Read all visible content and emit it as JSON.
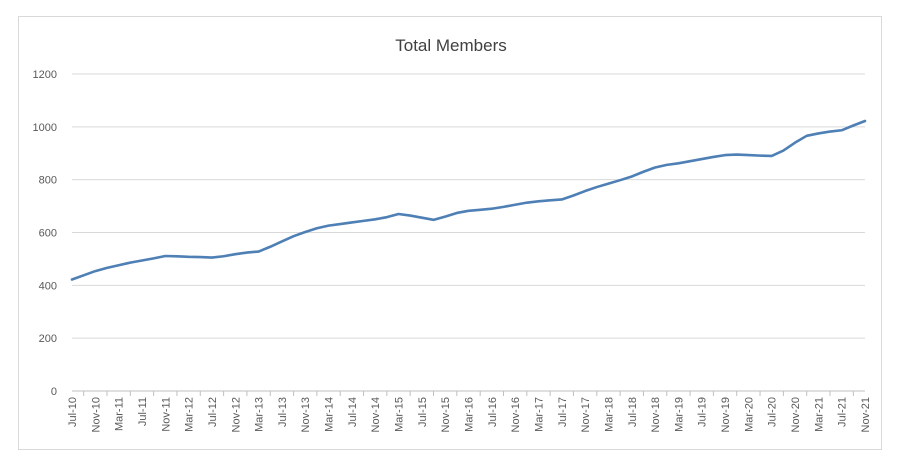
{
  "chart_data": {
    "type": "line",
    "title": "Total Members",
    "xlabel": "",
    "ylabel": "",
    "ylim": [
      0,
      1200
    ],
    "yticks": [
      0,
      200,
      400,
      600,
      800,
      1000,
      1200
    ],
    "grid": true,
    "legend": "none",
    "line_color": "#4e7fb5",
    "x_tick_labels": [
      "Jul-10",
      "Nov-10",
      "Mar-11",
      "Jul-11",
      "Nov-11",
      "Mar-12",
      "Jul-12",
      "Nov-12",
      "Mar-13",
      "Jul-13",
      "Nov-13",
      "Mar-14",
      "Jul-14",
      "Nov-14",
      "Mar-15",
      "Jul-15",
      "Nov-15",
      "Mar-16",
      "Jul-16",
      "Nov-16",
      "Mar-17",
      "Jul-17",
      "Nov-17",
      "Mar-18",
      "Jul-18",
      "Nov-18",
      "Mar-19",
      "Jul-19",
      "Nov-19",
      "Mar-20",
      "Jul-20",
      "Nov-20",
      "Mar-21",
      "Jul-21",
      "Nov-21"
    ],
    "series": [
      {
        "x": [
          "Jul-10",
          "Sep-10",
          "Nov-10",
          "Jan-11",
          "Mar-11",
          "May-11",
          "Jul-11",
          "Sep-11",
          "Nov-11",
          "Jan-12",
          "Mar-12",
          "May-12",
          "Jul-12",
          "Sep-12",
          "Nov-12",
          "Jan-13",
          "Mar-13",
          "May-13",
          "Jul-13",
          "Sep-13",
          "Nov-13",
          "Jan-14",
          "Mar-14",
          "May-14",
          "Jul-14",
          "Sep-14",
          "Nov-14",
          "Jan-15",
          "Mar-15",
          "May-15",
          "Jul-15",
          "Sep-15",
          "Nov-15",
          "Jan-16",
          "Mar-16",
          "May-16",
          "Jul-16",
          "Sep-16",
          "Nov-16",
          "Jan-17",
          "Mar-17",
          "May-17",
          "Jul-17",
          "Sep-17",
          "Nov-17",
          "Jan-18",
          "Mar-18",
          "May-18",
          "Jul-18",
          "Sep-18",
          "Nov-18",
          "Jan-19",
          "Mar-19",
          "May-19",
          "Jul-19",
          "Sep-19",
          "Nov-19",
          "Jan-20",
          "Mar-20",
          "May-20",
          "Jul-20",
          "Sep-20",
          "Nov-20",
          "Jan-21",
          "Mar-21",
          "May-21",
          "Jul-21",
          "Sep-21",
          "Nov-21"
        ],
        "values": [
          422,
          438,
          454,
          466,
          476,
          486,
          494,
          502,
          511,
          510,
          508,
          507,
          505,
          510,
          518,
          524,
          528,
          546,
          566,
          586,
          602,
          616,
          626,
          632,
          638,
          644,
          650,
          658,
          670,
          664,
          656,
          648,
          660,
          674,
          682,
          686,
          690,
          697,
          705,
          713,
          718,
          722,
          725,
          740,
          757,
          772,
          785,
          798,
          812,
          830,
          846,
          856,
          862,
          870,
          878,
          886,
          893,
          895,
          893,
          891,
          890,
          910,
          940,
          966,
          975,
          982,
          987,
          1005,
          1022
        ]
      }
    ]
  }
}
